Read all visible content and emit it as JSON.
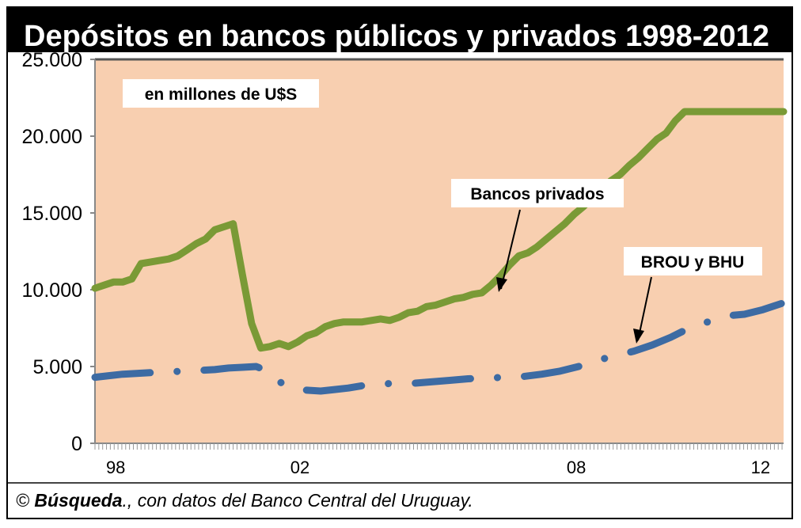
{
  "header": {
    "title": "Depósitos en bancos públicos y privados 1998-2012"
  },
  "footer": {
    "copyright_symbol": "©",
    "source_name": "Búsqueda",
    "source_rest": "., con datos del Banco Central del Uruguay."
  },
  "colors": {
    "plot_background": "#f8cfb0",
    "privados_line": "#7a9a36",
    "brou_line": "#3d6ba3"
  },
  "chart_data": {
    "type": "line",
    "title": "Depósitos en bancos públicos y privados 1998-2012",
    "unit_note": "en millones de U$S",
    "xlabel": "",
    "ylabel": "",
    "x_range": [
      1998.0,
      2012.95
    ],
    "ylim": [
      0,
      25000
    ],
    "y_ticks": [
      0,
      5000,
      10000,
      15000,
      20000,
      25000
    ],
    "y_tick_labels": [
      "0",
      "5.000",
      "10.000",
      "15.000",
      "20.000",
      "25.000"
    ],
    "x_ticks": [
      1998,
      2002,
      2008,
      2012
    ],
    "x_tick_labels": [
      "98",
      "02",
      "08",
      "12"
    ],
    "grid": false,
    "legend": "none",
    "annotations": [
      "Bancos privados",
      "BROU y BHU"
    ],
    "series": [
      {
        "name": "Bancos privados",
        "style": "solid",
        "x": [
          1998.0,
          1998.2,
          1998.4,
          1998.6,
          1998.8,
          1999.0,
          1999.2,
          1999.4,
          1999.6,
          1999.8,
          2000.0,
          2000.2,
          2000.4,
          2000.6,
          2000.8,
          2001.0,
          2001.2,
          2001.4,
          2001.6,
          2001.8,
          2002.0,
          2002.2,
          2002.4,
          2002.6,
          2002.8,
          2003.0,
          2003.2,
          2003.4,
          2003.6,
          2003.8,
          2004.0,
          2004.2,
          2004.4,
          2004.6,
          2004.8,
          2005.0,
          2005.2,
          2005.4,
          2005.6,
          2005.8,
          2006.0,
          2006.2,
          2006.4,
          2006.6,
          2006.8,
          2007.0,
          2007.2,
          2007.4,
          2007.6,
          2007.8,
          2008.0,
          2008.2,
          2008.4,
          2008.6,
          2008.8,
          2009.0,
          2009.2,
          2009.4,
          2009.6,
          2009.8,
          2010.0,
          2010.2,
          2010.4,
          2010.6,
          2010.8,
          2011.0,
          2011.2,
          2011.4,
          2011.6,
          2011.8,
          2012.0,
          2012.2,
          2012.4,
          2012.6,
          2012.8,
          2012.95
        ],
        "values": [
          10100,
          10300,
          10500,
          10500,
          10700,
          11700,
          11800,
          11900,
          12000,
          12200,
          12600,
          13000,
          13300,
          13900,
          14100,
          14300,
          11000,
          7800,
          6200,
          6300,
          6500,
          6300,
          6600,
          7000,
          7200,
          7600,
          7800,
          7900,
          7900,
          7900,
          8000,
          8100,
          8000,
          8200,
          8500,
          8600,
          8900,
          9000,
          9200,
          9400,
          9500,
          9700,
          9800,
          10300,
          10900,
          11600,
          12200,
          12400,
          12800,
          13300,
          13800,
          14300,
          14900,
          15400,
          16000,
          16500,
          17100,
          17500,
          18100,
          18600,
          19200,
          19800,
          20200,
          21000,
          21600,
          21600,
          21600,
          21600,
          21600,
          21600,
          21600,
          21600,
          21600,
          21600,
          21600,
          21600
        ]
      },
      {
        "name": "BROU y BHU",
        "style": "dash-dot",
        "x": [
          1998.0,
          1998.3,
          1998.6,
          1998.9,
          1999.2,
          1999.5,
          2000.0,
          2000.6,
          2000.9,
          2001.2,
          2001.5,
          2001.75,
          2002.0,
          2002.4,
          2002.9,
          2003.2,
          2003.5,
          2003.8,
          2004.1,
          2004.5,
          2004.9,
          2005.3,
          2005.7,
          2006.1,
          2006.5,
          2006.9,
          2007.3,
          2007.7,
          2008.1,
          2008.5,
          2008.9,
          2009.3,
          2009.7,
          2010.1,
          2010.5,
          2010.9,
          2011.3,
          2011.7,
          2012.1,
          2012.5,
          2012.9
        ],
        "values": [
          4300,
          4400,
          4500,
          4550,
          4600,
          4650,
          4700,
          4800,
          4900,
          4950,
          5000,
          4700,
          4000,
          3500,
          3400,
          3500,
          3600,
          3750,
          3850,
          3900,
          3900,
          4000,
          4100,
          4200,
          4250,
          4300,
          4350,
          4500,
          4700,
          5000,
          5400,
          5700,
          6000,
          6400,
          6900,
          7500,
          7900,
          8300,
          8400,
          8700,
          9100
        ]
      }
    ]
  }
}
